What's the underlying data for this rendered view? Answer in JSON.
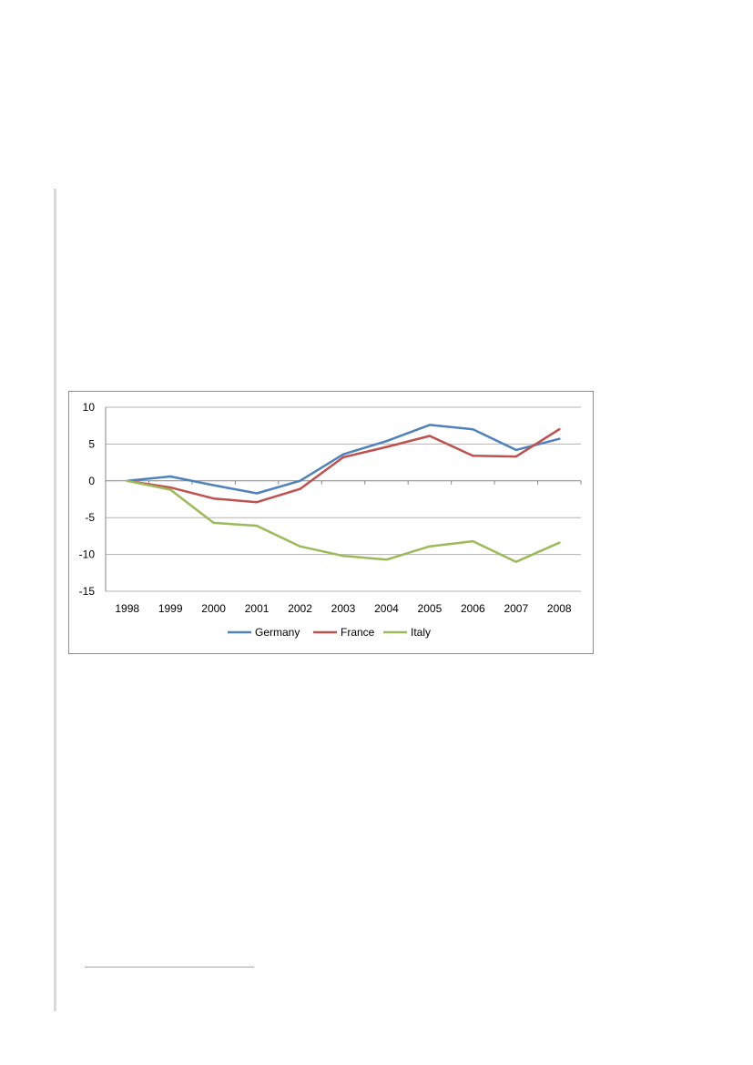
{
  "chart_data": {
    "type": "line",
    "title": "",
    "xlabel": "",
    "ylabel": "",
    "x": [
      "1998",
      "1999",
      "2000",
      "2001",
      "2002",
      "2003",
      "2004",
      "2005",
      "2006",
      "2007",
      "2008"
    ],
    "ylim": [
      -15,
      10
    ],
    "yticks": [
      10,
      5,
      0,
      -5,
      -10,
      -15
    ],
    "grid": true,
    "legend_position": "bottom",
    "series": [
      {
        "name": "Germany",
        "color": "#4f81bd",
        "values": [
          0,
          0.6,
          -0.6,
          -1.7,
          0,
          3.6,
          5.4,
          7.6,
          7.0,
          4.2,
          5.7
        ]
      },
      {
        "name": "France",
        "color": "#c0504d",
        "values": [
          0,
          -0.9,
          -2.4,
          -2.9,
          -1.1,
          3.2,
          4.6,
          6.1,
          3.4,
          3.3,
          7.0
        ]
      },
      {
        "name": "Italy",
        "color": "#9bbb59",
        "values": [
          0,
          -1.2,
          -5.7,
          -6.1,
          -8.9,
          -10.2,
          -10.7,
          -8.9,
          -8.2,
          -11.0,
          -8.4
        ]
      }
    ]
  }
}
